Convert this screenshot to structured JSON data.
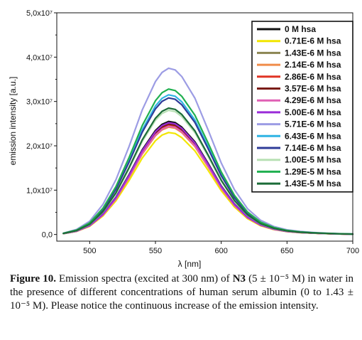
{
  "chart_data": {
    "type": "line",
    "xlabel": "λ [nm]",
    "ylabel": "emission intensity [a.u.]",
    "xlim": [
      475,
      700
    ],
    "ylim": [
      -1500000,
      50000000
    ],
    "x_ticks": [
      500,
      550,
      600,
      650,
      700
    ],
    "x_tick_labels": [
      "500",
      "550",
      "600",
      "650",
      "700"
    ],
    "y_ticks": [
      0,
      10000000,
      20000000,
      30000000,
      40000000,
      50000000
    ],
    "y_tick_labels": [
      "0,0",
      "1,0x10⁷",
      "2,0x10⁷",
      "3,0x10⁷",
      "4,0x10⁷",
      "5,0x10⁷"
    ],
    "legend_position": "top-right",
    "x": [
      480,
      490,
      500,
      510,
      520,
      530,
      540,
      550,
      555,
      560,
      565,
      570,
      580,
      590,
      600,
      610,
      620,
      630,
      640,
      650,
      660,
      670,
      680,
      690,
      700
    ],
    "series": [
      {
        "name": "0 M hsa",
        "color": "#111111",
        "peak": 25500000
      },
      {
        "name": "0.71E-6 M hsa",
        "color": "#f2e600",
        "peak": 23000000
      },
      {
        "name": "1.43E-6 M hsa",
        "color": "#8b8552",
        "peak": 24800000
      },
      {
        "name": "2.14E-6 M hsa",
        "color": "#f08c4a",
        "peak": 24200000
      },
      {
        "name": "2.86E-6 M hsa",
        "color": "#e03424",
        "peak": 24600000
      },
      {
        "name": "3.57E-6 M hsa",
        "color": "#7a1c18",
        "peak": 24900000
      },
      {
        "name": "4.29E-6 M hsa",
        "color": "#e060b4",
        "peak": 24400000
      },
      {
        "name": "5.00E-6 M hsa",
        "color": "#9a2cd8",
        "peak": 25200000
      },
      {
        "name": "5.71E-6 M hsa",
        "color": "#9c9ce4",
        "peak": 37500000
      },
      {
        "name": "6.43E-6 M hsa",
        "color": "#2eb4e4",
        "peak": 31500000
      },
      {
        "name": "7.14E-6 M hsa",
        "color": "#2f3c98",
        "peak": 30800000
      },
      {
        "name": "1.00E-5 M hsa",
        "color": "#b8e0b4",
        "peak": 28000000
      },
      {
        "name": "1.29E-5 M hsa",
        "color": "#20b050",
        "peak": 32800000
      },
      {
        "name": "1.43E-5 M hsa",
        "color": "#1c6c38",
        "peak": 28500000
      }
    ],
    "profile": [
      0.008,
      0.03,
      0.08,
      0.18,
      0.33,
      0.53,
      0.75,
      0.92,
      0.975,
      1.0,
      0.99,
      0.95,
      0.82,
      0.63,
      0.43,
      0.27,
      0.155,
      0.085,
      0.048,
      0.028,
      0.018,
      0.012,
      0.008,
      0.005,
      0.003
    ]
  },
  "caption": {
    "label": "Figure 10.",
    "text_before_compound": "Emission spectra (excited at 300 nm) of",
    "compound": "N3",
    "text_after_compound": "(5 ± 10⁻⁵ M) in water in the presence of different concentrations of human serum albumin (0 to 1.43 ± 10⁻⁵ M). Please notice the continuous increase of the emission intensity."
  }
}
